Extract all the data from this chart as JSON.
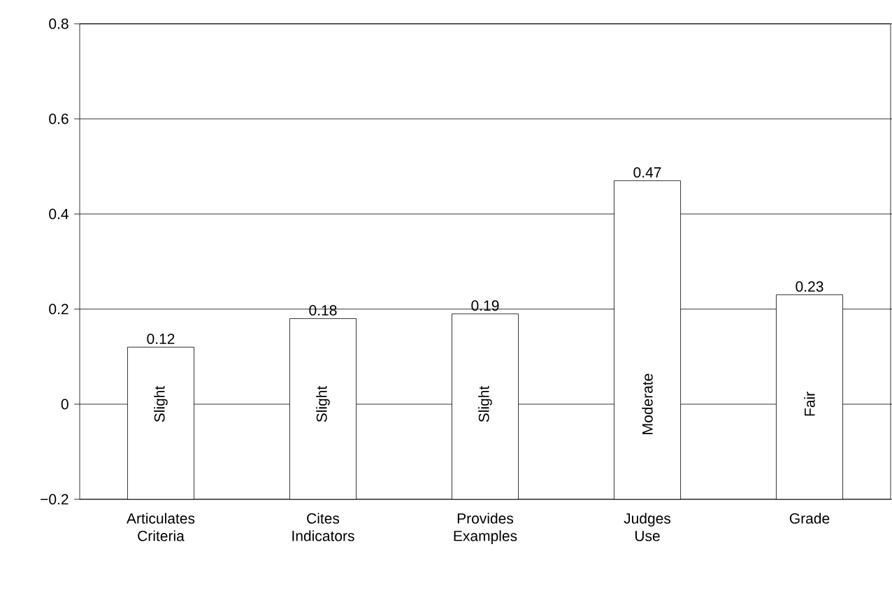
{
  "chart_data": {
    "type": "bar",
    "categories": [
      "Articulates Criteria",
      "Cites Indicators",
      "Provides Examples",
      "Judges Use",
      "Grade"
    ],
    "values": [
      0.32,
      0.38,
      0.39,
      0.67,
      0.43
    ],
    "base": [
      -0.2,
      -0.2,
      -0.2,
      -0.2,
      -0.2
    ],
    "value_labels": [
      "0.12",
      "0.18",
      "0.19",
      "0.47",
      "0.23"
    ],
    "color": "#ffffff",
    "ylim": [
      -0.2,
      0.8
    ],
    "yticks": [
      {
        "value": -0.2,
        "label": "−0.2"
      },
      0,
      0.2,
      0.4,
      0.6,
      0.8
    ],
    "grid": "y",
    "annotations": [
      "Slight",
      "Slight",
      "Slight",
      "Moderate",
      "Fair"
    ]
  }
}
